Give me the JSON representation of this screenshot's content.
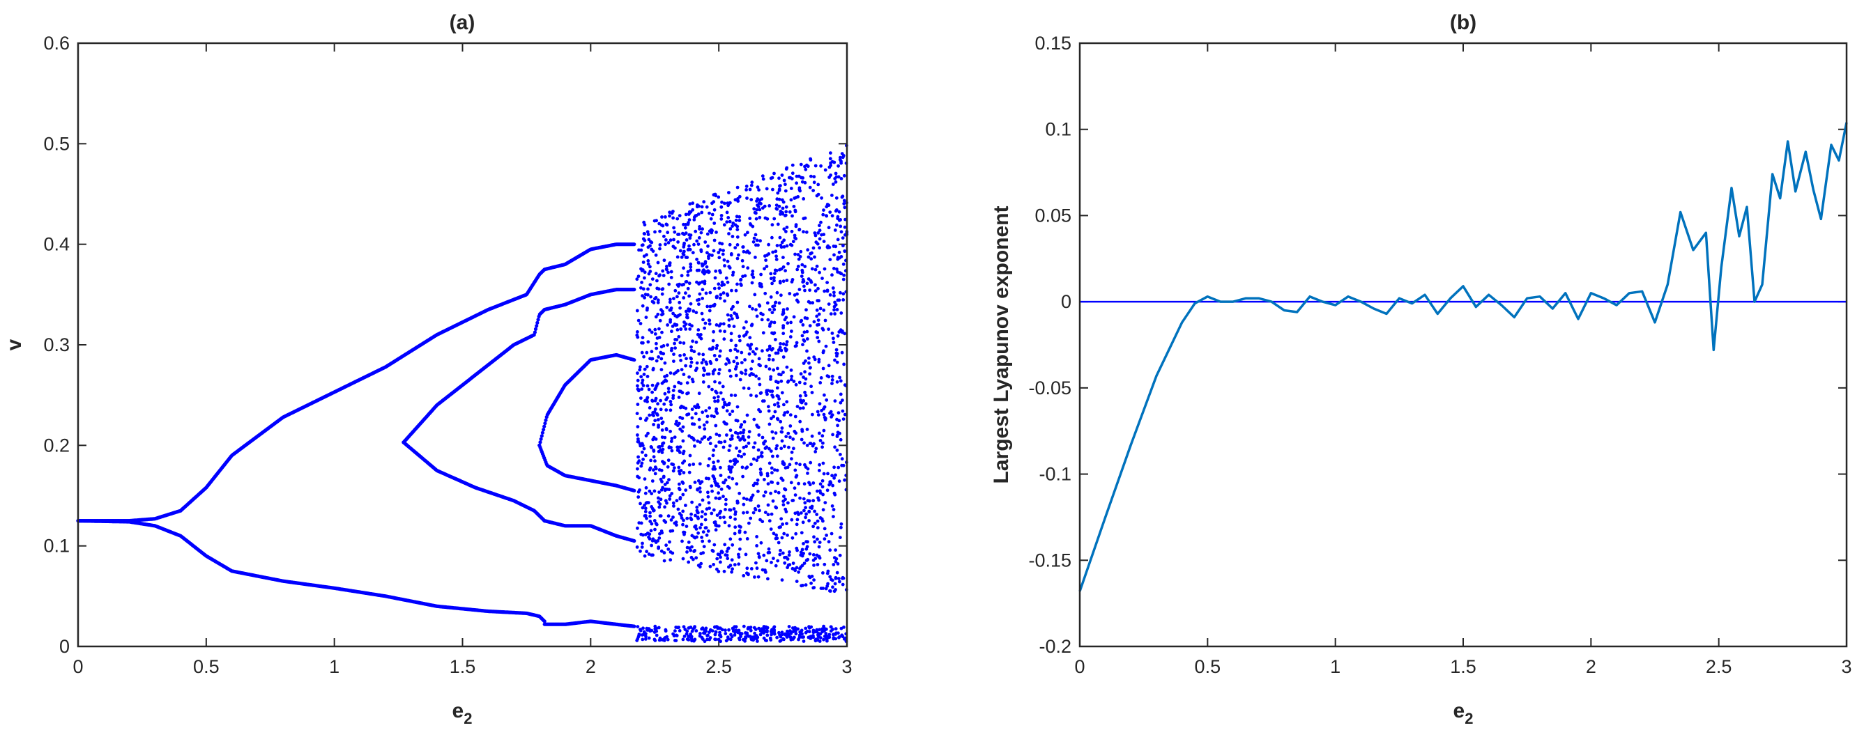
{
  "chart_data": [
    {
      "type": "scatter",
      "title": "(a)",
      "xlabel": "e",
      "xlabel_sub": "2",
      "ylabel": "v",
      "xlim": [
        0,
        3
      ],
      "ylim": [
        0,
        0.6
      ],
      "xticks": [
        0,
        0.5,
        1,
        1.5,
        2,
        2.5,
        3
      ],
      "xtick_labels": [
        "0",
        "0.5",
        "1",
        "1.5",
        "2",
        "2.5",
        "3"
      ],
      "yticks": [
        0,
        0.1,
        0.2,
        0.3,
        0.4,
        0.5,
        0.6
      ],
      "ytick_labels": [
        "0",
        "0.1",
        "0.2",
        "0.3",
        "0.4",
        "0.5",
        "0.6"
      ],
      "grid": false,
      "marker_color": "#0000ff",
      "branches": [
        {
          "e2": [
            0,
            0.2,
            0.3,
            0.4,
            0.5,
            0.6,
            0.8,
            1.0,
            1.2,
            1.4,
            1.6,
            1.75,
            1.8,
            1.82
          ],
          "v": [
            0.125,
            0.125,
            0.127,
            0.135,
            0.158,
            0.19,
            0.228,
            0.253,
            0.278,
            0.31,
            0.335,
            0.35,
            0.37,
            0.375
          ]
        },
        {
          "e2": [
            0,
            0.2,
            0.3,
            0.4,
            0.5,
            0.6,
            0.8,
            1.0,
            1.2,
            1.4,
            1.6,
            1.75,
            1.8,
            1.82
          ],
          "v": [
            0.125,
            0.124,
            0.12,
            0.11,
            0.09,
            0.075,
            0.065,
            0.058,
            0.05,
            0.04,
            0.035,
            0.033,
            0.03,
            0.025
          ]
        },
        {
          "e2": [
            1.27,
            1.4,
            1.55,
            1.7,
            1.78,
            1.8,
            1.82
          ],
          "v": [
            0.203,
            0.24,
            0.27,
            0.3,
            0.31,
            0.33,
            0.335
          ]
        },
        {
          "e2": [
            1.27,
            1.4,
            1.55,
            1.7,
            1.78,
            1.8,
            1.82
          ],
          "v": [
            0.203,
            0.175,
            0.158,
            0.145,
            0.135,
            0.13,
            0.125
          ]
        },
        {
          "e2": [
            1.82,
            1.9,
            2.0,
            2.1,
            2.17
          ],
          "v": [
            0.022,
            0.022,
            0.025,
            0.022,
            0.02
          ]
        },
        {
          "e2": [
            1.82,
            1.9,
            2.0,
            2.1,
            2.17
          ],
          "v": [
            0.375,
            0.38,
            0.395,
            0.4,
            0.4
          ]
        },
        {
          "e2": [
            1.82,
            1.9,
            2.0,
            2.1,
            2.17
          ],
          "v": [
            0.335,
            0.34,
            0.35,
            0.355,
            0.355
          ]
        },
        {
          "e2": [
            1.82,
            1.9,
            2.0,
            2.1,
            2.17
          ],
          "v": [
            0.125,
            0.12,
            0.12,
            0.11,
            0.105
          ]
        },
        {
          "e2": [
            1.8,
            1.83,
            1.9,
            2.0,
            2.1,
            2.17
          ],
          "v": [
            0.2,
            0.23,
            0.26,
            0.285,
            0.29,
            0.285
          ]
        },
        {
          "e2": [
            1.8,
            1.83,
            1.9,
            2.0,
            2.1,
            2.17
          ],
          "v": [
            0.2,
            0.18,
            0.17,
            0.165,
            0.16,
            0.155
          ]
        }
      ],
      "chaotic_region": {
        "e2_start": 2.18,
        "e2_end": 3.0,
        "v_min": 0.005,
        "v_max": 0.5,
        "gap_band": [
          0.03,
          0.045
        ]
      }
    },
    {
      "type": "line",
      "title": "(b)",
      "xlabel": "e",
      "xlabel_sub": "2",
      "ylabel": "Largest Lyapunov exponent",
      "xlim": [
        0,
        3
      ],
      "ylim": [
        -0.2,
        0.15
      ],
      "xticks": [
        0,
        0.5,
        1,
        1.5,
        2,
        2.5,
        3
      ],
      "xtick_labels": [
        "0",
        "0.5",
        "1",
        "1.5",
        "2",
        "2.5",
        "3"
      ],
      "yticks": [
        -0.2,
        -0.15,
        -0.1,
        -0.05,
        0,
        0.05,
        0.1,
        0.15
      ],
      "ytick_labels": [
        "-0.2",
        "-0.15",
        "-0.1",
        "-0.05",
        "0",
        "0.05",
        "0.1",
        "0.15"
      ],
      "grid": false,
      "series": [
        {
          "color": "#0072bd",
          "x": [
            0,
            0.1,
            0.2,
            0.3,
            0.4,
            0.45,
            0.5,
            0.55,
            0.6,
            0.65,
            0.7,
            0.75,
            0.8,
            0.85,
            0.9,
            0.95,
            1.0,
            1.05,
            1.1,
            1.15,
            1.2,
            1.25,
            1.3,
            1.35,
            1.4,
            1.45,
            1.5,
            1.55,
            1.6,
            1.65,
            1.7,
            1.75,
            1.8,
            1.85,
            1.9,
            1.95,
            2.0,
            2.05,
            2.1,
            2.15,
            2.2,
            2.25,
            2.3,
            2.35,
            2.4,
            2.45,
            2.48,
            2.51,
            2.55,
            2.58,
            2.61,
            2.64,
            2.67,
            2.71,
            2.74,
            2.77,
            2.8,
            2.84,
            2.87,
            2.9,
            2.94,
            2.97,
            3.0
          ],
          "y": [
            -0.168,
            -0.125,
            -0.083,
            -0.043,
            -0.012,
            -0.001,
            0.003,
            0.0,
            0.0,
            0.002,
            0.002,
            0.0,
            -0.005,
            -0.006,
            0.003,
            0.0,
            -0.002,
            0.003,
            0.0,
            -0.004,
            -0.007,
            0.002,
            -0.001,
            0.004,
            -0.007,
            0.002,
            0.009,
            -0.003,
            0.004,
            -0.002,
            -0.009,
            0.002,
            0.003,
            -0.004,
            0.005,
            -0.01,
            0.005,
            0.002,
            -0.002,
            0.005,
            0.006,
            -0.012,
            0.01,
            0.052,
            0.03,
            0.04,
            -0.028,
            0.02,
            0.066,
            0.038,
            0.055,
            0.0,
            0.01,
            0.074,
            0.06,
            0.093,
            0.064,
            0.087,
            0.065,
            0.048,
            0.091,
            0.082,
            0.104
          ]
        }
      ],
      "reference_line": {
        "y": 0,
        "color": "#0000ff"
      }
    }
  ]
}
